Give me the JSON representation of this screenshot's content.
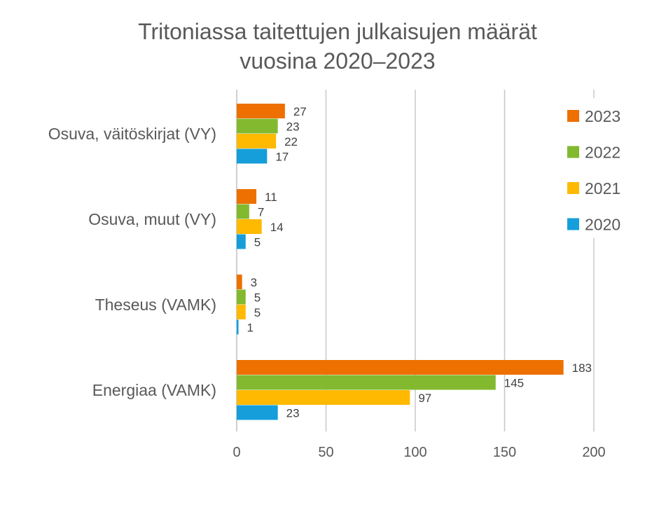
{
  "chart_data": {
    "type": "bar",
    "orientation": "horizontal",
    "title_lines": [
      "Tritoniassa taitettujen julkaisujen määrät",
      "vuosina 2020–2023"
    ],
    "categories": [
      "Osuva, väitöskirjat (VY)",
      "Osuva, muut (VY)",
      "Theseus (VAMK)",
      "Energiaa (VAMK)"
    ],
    "series": [
      {
        "name": "2023",
        "color": "#ED7000",
        "values": [
          27,
          11,
          3,
          183
        ]
      },
      {
        "name": "2022",
        "color": "#82B92E",
        "values": [
          23,
          7,
          5,
          145
        ]
      },
      {
        "name": "2021",
        "color": "#FFB900",
        "values": [
          22,
          14,
          5,
          97
        ]
      },
      {
        "name": "2020",
        "color": "#159EDA",
        "values": [
          17,
          5,
          1,
          23
        ]
      }
    ],
    "x_ticks": [
      0,
      50,
      100,
      150,
      200
    ],
    "xlim": [
      0,
      200
    ],
    "grid": true,
    "legend_position": "right"
  }
}
